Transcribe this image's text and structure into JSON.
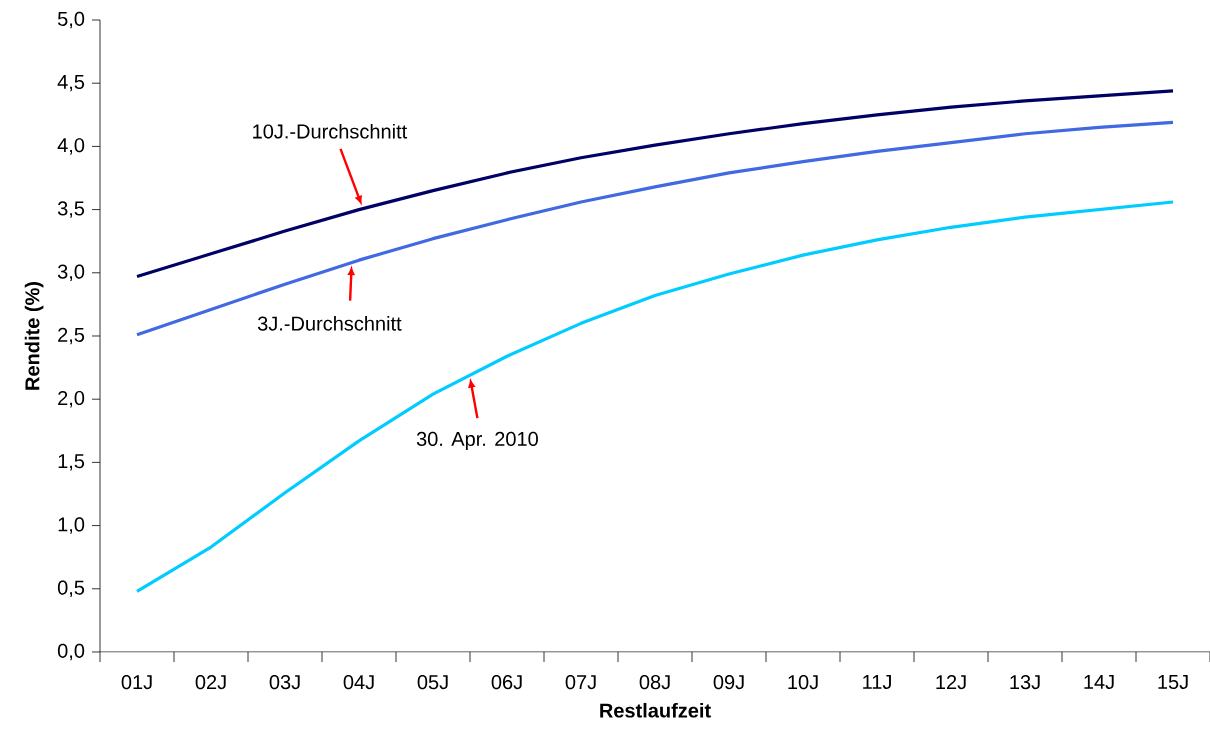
{
  "chart_data": {
    "type": "line",
    "xlabel": "Restlaufzeit",
    "ylabel": "Rendite (%)",
    "categories": [
      "01J",
      "02J",
      "03J",
      "04J",
      "05J",
      "06J",
      "07J",
      "08J",
      "09J",
      "10J",
      "11J",
      "12J",
      "13J",
      "14J",
      "15J"
    ],
    "series": [
      {
        "name": "10J.-Durchschnitt",
        "color": "#000066",
        "values": [
          2.97,
          3.15,
          3.33,
          3.5,
          3.65,
          3.79,
          3.91,
          4.01,
          4.1,
          4.18,
          4.25,
          4.31,
          4.36,
          4.4,
          4.44
        ]
      },
      {
        "name": "3J.-Durchschnitt",
        "color": "#4169e1",
        "values": [
          2.51,
          2.71,
          2.91,
          3.1,
          3.27,
          3.42,
          3.56,
          3.68,
          3.79,
          3.88,
          3.96,
          4.03,
          4.1,
          4.15,
          4.19
        ]
      },
      {
        "name": "30. Apr. 2010",
        "color": "#00ccff",
        "values": [
          0.48,
          0.83,
          1.26,
          1.67,
          2.04,
          2.34,
          2.6,
          2.82,
          2.99,
          3.14,
          3.26,
          3.36,
          3.44,
          3.5,
          3.56
        ]
      }
    ],
    "ylim": [
      0,
      5
    ],
    "yticks": [
      {
        "value": 0,
        "label": "0,0"
      },
      {
        "value": 0.5,
        "label": "0,5"
      },
      {
        "value": 1,
        "label": "1,0"
      },
      {
        "value": 1.5,
        "label": "1,5"
      },
      {
        "value": 2,
        "label": "2,0"
      },
      {
        "value": 2.5,
        "label": "2,5"
      },
      {
        "value": 3,
        "label": "3,0"
      },
      {
        "value": 3.5,
        "label": "3,5"
      },
      {
        "value": 4,
        "label": "4,0"
      },
      {
        "value": 4.5,
        "label": "4,5"
      },
      {
        "value": 5,
        "label": "5,0"
      }
    ],
    "grid": false,
    "legend": false,
    "marker": "none",
    "line_style": "solid"
  }
}
